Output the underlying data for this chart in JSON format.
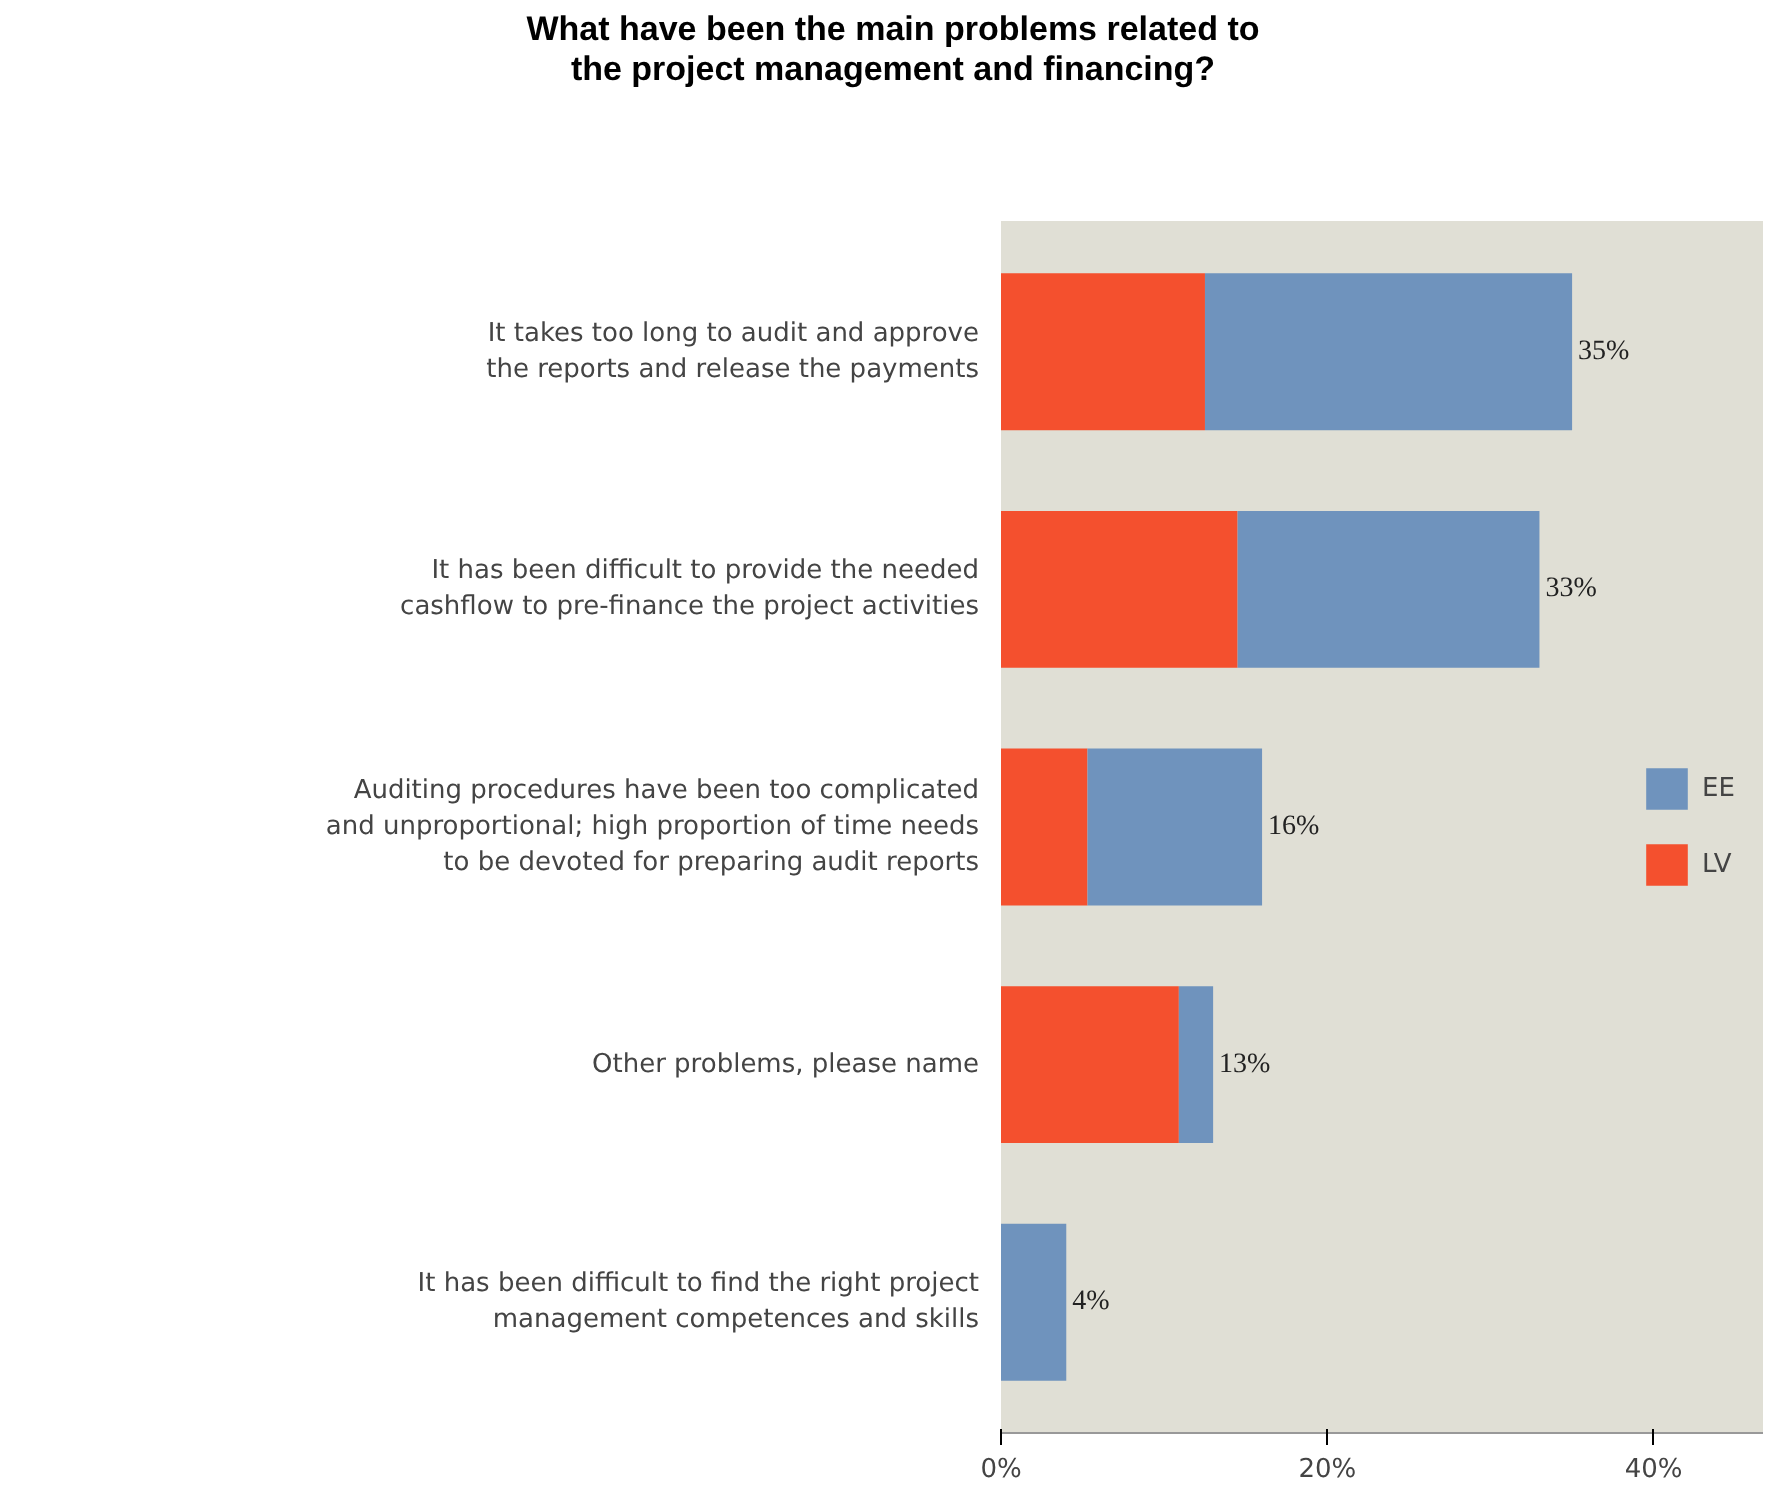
{
  "chart_data": {
    "type": "bar",
    "orientation": "horizontal",
    "stacked": true,
    "title": "What have been the main problems related to\nthe project management and financing?",
    "categories": [
      "It takes too long to audit and approve\nthe reports and release the payments",
      "It has been difficult to provide the needed\ncashflow to pre-finance the project activities",
      "Auditing procedures have been too complicated\nand unproportional; high proportion of time needs\nto be devoted for preparing audit reports",
      "Other problems, please name",
      "It has been difficult to find the right project\nmanagement competences and skills"
    ],
    "series": [
      {
        "name": "LV",
        "color": "#f4502e",
        "values": [
          12.5,
          14.5,
          5.3,
          10.9,
          0
        ]
      },
      {
        "name": "EE",
        "color": "#6f93bd",
        "values": [
          22.5,
          18.5,
          10.7,
          2.1,
          4
        ]
      }
    ],
    "totals": [
      "35%",
      "33%",
      "16%",
      "13%",
      "4%"
    ],
    "xlim": [
      0,
      46.7
    ],
    "xticks": [
      {
        "value": 0,
        "label": "0%"
      },
      {
        "value": 20,
        "label": "20%"
      },
      {
        "value": 40,
        "label": "40%"
      }
    ],
    "legend": "right",
    "grid": false
  }
}
